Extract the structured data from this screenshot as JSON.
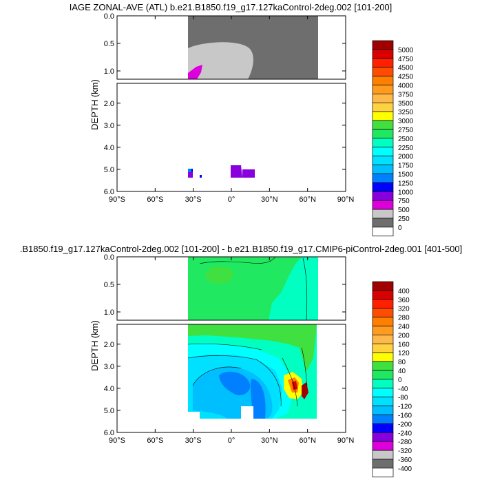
{
  "chart_data": [
    {
      "type": "heatmap",
      "title": "IAGE ZONAL-AVE (ATL) b.e21.B1850.f19_g17.127kaControl-2deg.002 [101-200]",
      "ylabel": "DEPTH (km)",
      "x_ticks": [
        "90°S",
        "60°S",
        "30°S",
        "0°",
        "30°N",
        "60°N",
        "90°N"
      ],
      "x_values": [
        -90,
        -60,
        -30,
        0,
        30,
        60,
        90
      ],
      "upper_y_ticks": [
        "0.0",
        "0.5",
        "1.0"
      ],
      "lower_y_ticks": [
        "2.0",
        "3.0",
        "4.0",
        "5.0",
        "6.0"
      ],
      "xlim": [
        -90,
        90
      ],
      "ylim": [
        6.0,
        0.0
      ],
      "colorbar": {
        "labels": [
          "5000",
          "4750",
          "4500",
          "4250",
          "4000",
          "3750",
          "3500",
          "3250",
          "3000",
          "2750",
          "2500",
          "2250",
          "2000",
          "1750",
          "1500",
          "1250",
          "1000",
          "750",
          "500",
          "250",
          "0"
        ],
        "colors": [
          "#a00000",
          "#d80000",
          "#ff2000",
          "#ff4c00",
          "#ff7f00",
          "#ff9c20",
          "#ffb84a",
          "#ffd240",
          "#ffff00",
          "#40e040",
          "#20e860",
          "#00ffc0",
          "#00ffff",
          "#00e0ff",
          "#00bfff",
          "#0080ff",
          "#0000ff",
          "#8800dd",
          "#dd00dd",
          "#c8c8c8",
          "#6e6e6e",
          "#ffffff"
        ]
      }
    },
    {
      "type": "heatmap",
      "title": ".B1850.f19_g17.127kaControl-2deg.002 [101-200] - b.e21.B1850.f19_g17.CMIP6-piControl-2deg.001 [401-500]",
      "ylabel": "DEPTH (km)",
      "x_ticks": [
        "90°S",
        "60°S",
        "30°S",
        "0°",
        "30°N",
        "60°N",
        "90°N"
      ],
      "x_values": [
        -90,
        -60,
        -30,
        0,
        30,
        60,
        90
      ],
      "upper_y_ticks": [
        "0.0",
        "0.5",
        "1.0"
      ],
      "lower_y_ticks": [
        "2.0",
        "3.0",
        "4.0",
        "5.0",
        "6.0"
      ],
      "xlim": [
        -90,
        90
      ],
      "ylim": [
        6.0,
        0.0
      ],
      "colorbar": {
        "labels": [
          "400",
          "360",
          "320",
          "280",
          "240",
          "200",
          "160",
          "120",
          "80",
          "40",
          "0",
          "-40",
          "-80",
          "-120",
          "-160",
          "-200",
          "-240",
          "-280",
          "-320",
          "-360",
          "-400"
        ],
        "colors": [
          "#a00000",
          "#d80000",
          "#ff2000",
          "#ff4c00",
          "#ff7f00",
          "#ff9c20",
          "#ffb84a",
          "#ffd240",
          "#ffff00",
          "#40e040",
          "#20e860",
          "#00ffc0",
          "#00ffff",
          "#00e0ff",
          "#00bfff",
          "#0080ff",
          "#0000ff",
          "#8800dd",
          "#dd00dd",
          "#c8c8c8",
          "#6e6e6e",
          "#ffffff"
        ]
      }
    }
  ]
}
